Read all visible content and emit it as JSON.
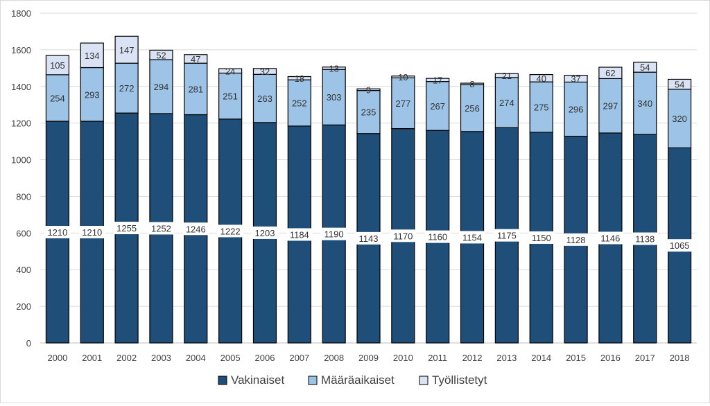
{
  "chart_data": {
    "type": "bar",
    "stacked": true,
    "categories": [
      "2000",
      "2001",
      "2002",
      "2003",
      "2004",
      "2005",
      "2006",
      "2007",
      "2008",
      "2009",
      "2010",
      "2011",
      "2012",
      "2013",
      "2014",
      "2015",
      "2016",
      "2017",
      "2018"
    ],
    "series": [
      {
        "name": "Vakinaiset",
        "color": "#1f4e79",
        "values": [
          1210,
          1210,
          1255,
          1252,
          1246,
          1222,
          1203,
          1184,
          1190,
          1143,
          1170,
          1160,
          1154,
          1175,
          1150,
          1128,
          1146,
          1138,
          1065
        ]
      },
      {
        "name": "Määräaikaiset",
        "color": "#9dc3e6",
        "values": [
          254,
          293,
          272,
          294,
          281,
          251,
          263,
          252,
          303,
          235,
          277,
          267,
          256,
          274,
          275,
          296,
          297,
          340,
          320
        ]
      },
      {
        "name": "Työllistetyt",
        "color": "#dae3f3",
        "values": [
          105,
          134,
          147,
          52,
          47,
          24,
          32,
          18,
          13,
          9,
          10,
          17,
          8,
          21,
          40,
          37,
          62,
          54,
          54
        ]
      }
    ],
    "y_ticks": [
      "0",
      "200",
      "400",
      "600",
      "800",
      "1000",
      "1200",
      "1400",
      "1600",
      "1800"
    ],
    "ylim": [
      0,
      1800
    ],
    "grid": true,
    "legend": "bottom",
    "title": "",
    "xlabel": "",
    "ylabel": ""
  }
}
